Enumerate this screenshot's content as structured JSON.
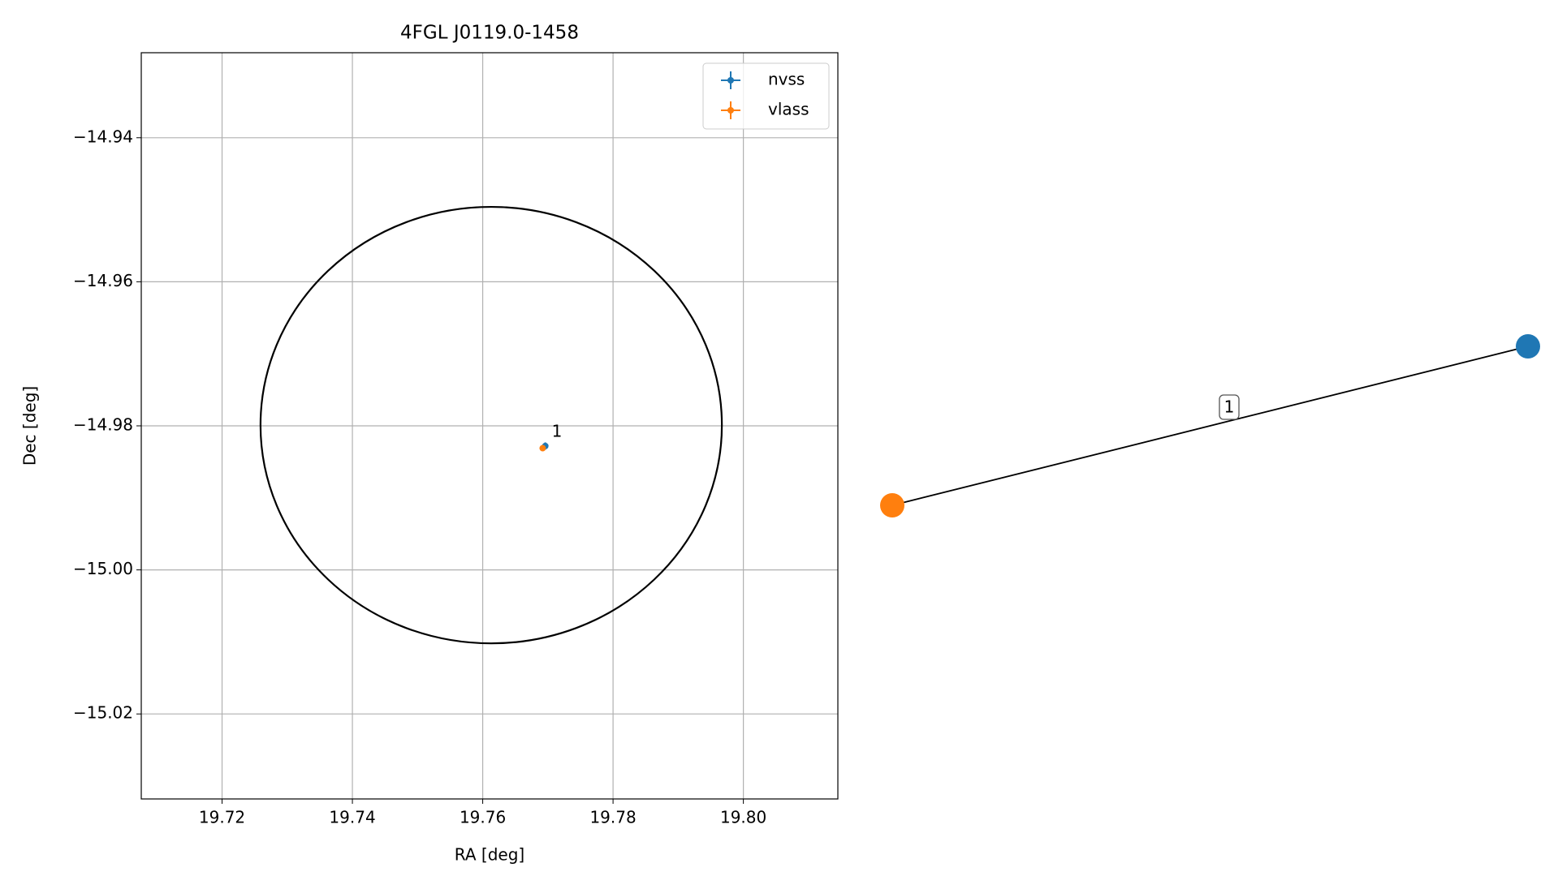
{
  "chart_data": {
    "type": "scatter",
    "title": "4FGL J0119.0-1458",
    "x_label": "RA [deg]",
    "y_label": "Dec [deg]",
    "xlim": [
      19.7076,
      19.8145
    ],
    "ylim": [
      -15.0318,
      -14.9282
    ],
    "xticks": [
      19.72,
      19.74,
      19.76,
      19.78,
      {
        "value": 19.8,
        "label": "19.80"
      }
    ],
    "yticks": [
      {
        "value": -14.94,
        "label": "−14.94"
      },
      {
        "value": -14.96,
        "label": "−14.96"
      },
      {
        "value": -14.98,
        "label": "−14.98"
      },
      {
        "value": -15.0,
        "label": "−15.00"
      },
      {
        "value": -15.02,
        "label": "−15.02"
      }
    ],
    "grid": true,
    "legend": "upper right",
    "series": [
      {
        "name": "nvss",
        "color": "#1f77b4",
        "x": [
          19.7696
        ],
        "values": [
          -14.9828
        ],
        "xerr": [
          0.0003
        ],
        "yerr": [
          0.0005
        ]
      },
      {
        "name": "vlass",
        "color": "#ff7f0e",
        "x": [
          19.7692
        ],
        "values": [
          -14.9831
        ],
        "xerr": [
          0.0002
        ],
        "yerr": [
          0.0002
        ]
      }
    ],
    "annotations": [
      "1"
    ],
    "circle": {
      "ra": 19.7613,
      "dec": -14.9799,
      "radius_ra": 0.0354,
      "radius_dec": 0.0303,
      "color": "#000000"
    }
  },
  "graph": {
    "nodes": [
      {
        "color": "#ff7f0e"
      },
      {
        "color": "#1f77b4"
      }
    ],
    "edges": [
      {
        "label": "1"
      }
    ]
  }
}
